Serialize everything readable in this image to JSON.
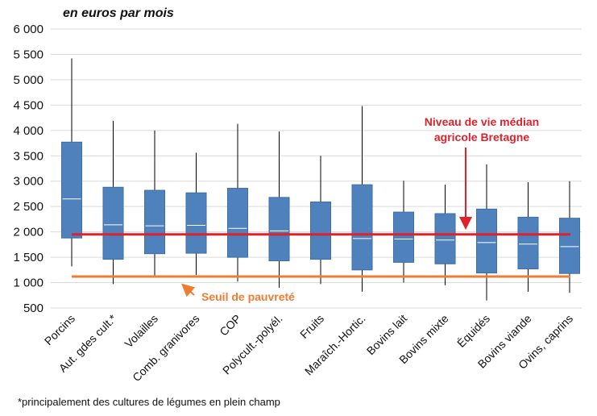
{
  "unit_label": "en euros par mois",
  "footnote": "*principalement des cultures de légumes en plein champ",
  "colors": {
    "box": "#4f81bd",
    "box_stroke": "#3d6ea5",
    "median_line": "#ffffff",
    "whisker": "#000000",
    "median_reference": "#e0202a",
    "poverty_line": "#ee7d31",
    "grid": "#d9d9d9"
  },
  "chart_data": {
    "type": "boxplot",
    "title": "",
    "xlabel": "",
    "ylabel": "en euros par mois",
    "ylim": [
      500,
      6000
    ],
    "yticks": [
      500,
      1000,
      1500,
      2000,
      2500,
      3000,
      3500,
      4000,
      4500,
      5000,
      5500,
      6000
    ],
    "ytick_labels": [
      "500",
      "1 000",
      "1 500",
      "2 000",
      "2 500",
      "3 000",
      "3 500",
      "4 000",
      "4 500",
      "5 000",
      "5 500",
      "6 000"
    ],
    "grid": true,
    "categories": [
      "Porcins",
      "Aut. gdes cult.*",
      "Volailles",
      "Comb. granivores",
      "COP",
      "Polycult.-polyél.",
      "Fruits",
      "Maraîch.-Hortic.",
      "Bovins lait",
      "Bovins mixte",
      "Équidés",
      "Bovins viande",
      "Ovins, caprins"
    ],
    "boxes": [
      {
        "min": 1320,
        "q1": 1880,
        "median": 2650,
        "q3": 3770,
        "max": 5420
      },
      {
        "min": 970,
        "q1": 1460,
        "median": 2140,
        "q3": 2880,
        "max": 4190
      },
      {
        "min": 1100,
        "q1": 1570,
        "median": 2120,
        "q3": 2820,
        "max": 4000
      },
      {
        "min": 1150,
        "q1": 1580,
        "median": 2130,
        "q3": 2770,
        "max": 3560
      },
      {
        "min": 1020,
        "q1": 1500,
        "median": 2070,
        "q3": 2860,
        "max": 4130
      },
      {
        "min": 900,
        "q1": 1430,
        "median": 2020,
        "q3": 2680,
        "max": 3980
      },
      {
        "min": 970,
        "q1": 1460,
        "median": 1940,
        "q3": 2590,
        "max": 3500
      },
      {
        "min": 820,
        "q1": 1250,
        "median": 1870,
        "q3": 2930,
        "max": 4480
      },
      {
        "min": 1000,
        "q1": 1400,
        "median": 1860,
        "q3": 2390,
        "max": 3010
      },
      {
        "min": 950,
        "q1": 1370,
        "median": 1840,
        "q3": 2360,
        "max": 2930
      },
      {
        "min": 650,
        "q1": 1190,
        "median": 1790,
        "q3": 2450,
        "max": 3330
      },
      {
        "min": 820,
        "q1": 1270,
        "median": 1760,
        "q3": 2290,
        "max": 2980
      },
      {
        "min": 800,
        "q1": 1180,
        "median": 1710,
        "q3": 2270,
        "max": 3000
      }
    ],
    "reference_lines": [
      {
        "label": "Niveau de vie médian agricole Bretagne",
        "label_lines": [
          "Niveau de vie médian",
          "agricole Bretagne"
        ],
        "value": 1950
      },
      {
        "label": "Seuil de pauvreté",
        "value": 1120
      }
    ]
  }
}
